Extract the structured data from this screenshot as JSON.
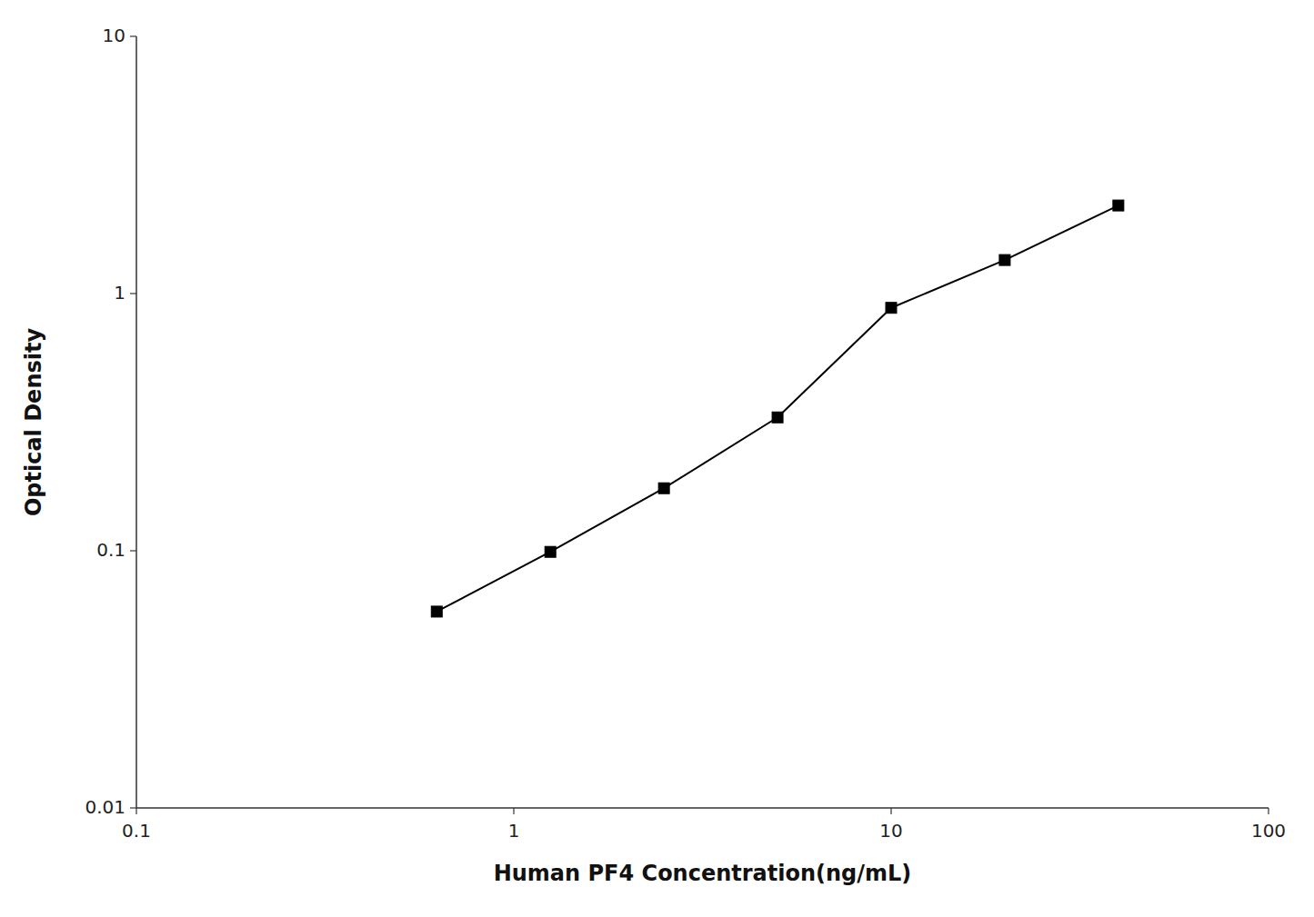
{
  "chart_data": {
    "type": "line",
    "x": [
      0.625,
      1.25,
      2.5,
      5.0,
      10.0,
      20.0,
      40.0
    ],
    "values": [
      0.058,
      0.099,
      0.175,
      0.33,
      0.88,
      1.35,
      2.2
    ],
    "xlabel": "Human PF4 Concentration(ng/mL)",
    "ylabel": "Optical Density",
    "xlim": [
      0.1,
      100
    ],
    "ylim": [
      0.01,
      10
    ],
    "xticks": [
      0.1,
      1,
      10,
      100
    ],
    "yticks": [
      0.01,
      0.1,
      1,
      10
    ],
    "log": true,
    "grid": false,
    "color": "#000000",
    "marker": "square"
  }
}
